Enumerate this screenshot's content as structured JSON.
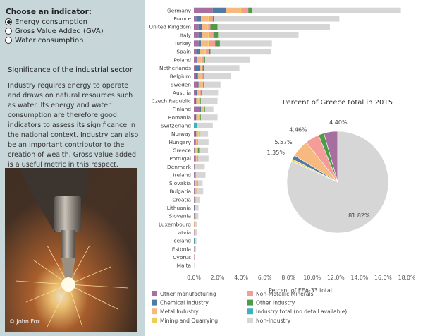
{
  "sidebar": {
    "heading": "Choose an indicator:",
    "options": [
      {
        "label": "Energy consumption",
        "selected": true
      },
      {
        "label": "Gross Value Added (GVA)",
        "selected": false
      },
      {
        "label": "Water consumption",
        "selected": false
      }
    ],
    "significance_title": "Significance of the industrial sector",
    "significance_text": "Industry requires energy to operate and draws on natural resources such as water. Its energy and water consumption are therefore good indicators to assess its significance in the national context. Industry can also be an important contributor to the creation of wealth. Gross value added is a useful metric in this respect.",
    "photo_credit": "© John Fox"
  },
  "colors": {
    "Other manufacturing": "#a76ea0",
    "Chemical Industry": "#4f7aa4",
    "Metal Industry": "#f6b97f",
    "Mining and Quarrying": "#f0cf55",
    "Non-Metallic Minerals": "#f49c98",
    "Other Industry": "#4e9a48",
    "Industry total (no detail available)": "#3bb3be",
    "Non-Industry": "#d6d6d6"
  },
  "chart_data": [
    {
      "type": "bar",
      "orientation": "horizontal",
      "stacked": true,
      "xlabel": "Percent of EEA-33 total",
      "xlim": [
        0,
        18
      ],
      "xticks": [
        "0.0%",
        "2.0%",
        "4.0%",
        "6.0%",
        "8.0%",
        "10.0%",
        "12.0%",
        "14.0%",
        "16.0%",
        "18.0%"
      ],
      "categories": [
        "Germany",
        "France",
        "United Kingdom",
        "Italy",
        "Turkey",
        "Spain",
        "Poland",
        "Netherlands",
        "Belgium",
        "Sweden",
        "Austria",
        "Czech Republic",
        "Finland",
        "Romania",
        "Switzerland",
        "Norway",
        "Hungary",
        "Greece",
        "Portugal",
        "Denmark",
        "Ireland",
        "Slovakia",
        "Bulgaria",
        "Croatia",
        "Lithuania",
        "Slovenia",
        "Luxembourg",
        "Latvia",
        "Iceland",
        "Estonia",
        "Cyprus",
        "Malta"
      ],
      "series": [
        {
          "name": "Other manufacturing",
          "values": [
            1.6,
            0.2,
            0.4,
            0.4,
            0.4,
            0.2,
            0.2,
            0.1,
            0.15,
            0.3,
            0.15,
            0.1,
            0.5,
            0.1,
            0,
            0.1,
            0.1,
            0.05,
            0.1,
            0.02,
            0.05,
            0.05,
            0.05,
            0.02,
            0.02,
            0.02,
            0.01,
            0.02,
            0.02,
            0.01,
            0.01,
            0
          ]
        },
        {
          "name": "Chemical Industry",
          "values": [
            1.1,
            0.4,
            0.3,
            0.3,
            0.2,
            0.3,
            0.1,
            0.4,
            0.2,
            0.1,
            0.1,
            0.1,
            0.1,
            0.1,
            0,
            0.1,
            0.05,
            0.05,
            0.05,
            0.02,
            0.02,
            0.05,
            0.05,
            0.02,
            0.05,
            0.02,
            0,
            0,
            0,
            0.01,
            0,
            0
          ]
        },
        {
          "name": "Metal Industry",
          "values": [
            1.2,
            0.6,
            0.4,
            0.5,
            0.6,
            0.4,
            0.3,
            0.1,
            0.3,
            0.3,
            0.2,
            0.2,
            0.2,
            0.2,
            0,
            0.2,
            0.1,
            0.1,
            0.05,
            0.02,
            0.02,
            0.15,
            0.1,
            0.02,
            0,
            0.05,
            0.05,
            0,
            0,
            0,
            0,
            0
          ]
        },
        {
          "name": "Mining and Quarrying",
          "values": [
            0.1,
            0.1,
            0.1,
            0.05,
            0.1,
            0.1,
            0.05,
            0.05,
            0.02,
            0.05,
            0.05,
            0.05,
            0.05,
            0.05,
            0,
            0.05,
            0.02,
            0.05,
            0.02,
            0.02,
            0.02,
            0.02,
            0.02,
            0.01,
            0,
            0.01,
            0,
            0,
            0,
            0,
            0,
            0
          ]
        },
        {
          "name": "Non-Metallic Minerals",
          "values": [
            0.6,
            0.3,
            0.2,
            0.4,
            0.5,
            0.3,
            0.2,
            0.1,
            0.1,
            0.05,
            0.1,
            0.1,
            0.05,
            0.1,
            0,
            0.05,
            0.05,
            0.1,
            0.1,
            0.02,
            0.05,
            0.05,
            0.05,
            0.05,
            0.02,
            0.02,
            0.02,
            0.02,
            0,
            0.01,
            0.02,
            0
          ]
        },
        {
          "name": "Other Industry",
          "values": [
            0.3,
            0.1,
            0.6,
            0.4,
            0.4,
            0.1,
            0.1,
            0.1,
            0.05,
            0.05,
            0.05,
            0.05,
            0.05,
            0.05,
            0,
            0.05,
            0.02,
            0.1,
            0.02,
            0.02,
            0.02,
            0.02,
            0.02,
            0.01,
            0.01,
            0.01,
            0,
            0,
            0,
            0,
            0,
            0
          ]
        },
        {
          "name": "Industry total (no detail available)",
          "values": [
            0,
            0,
            0,
            0,
            0,
            0,
            0,
            0,
            0,
            0,
            0,
            0,
            0,
            0,
            0.3,
            0,
            0,
            0,
            0,
            0,
            0,
            0,
            0,
            0,
            0,
            0,
            0,
            0,
            0.1,
            0,
            0,
            0
          ]
        },
        {
          "name": "Non-Industry",
          "values": [
            12.6,
            10.6,
            9.5,
            6.8,
            4.4,
            5.1,
            3.8,
            3.0,
            2.3,
            1.4,
            1.4,
            1.4,
            0.7,
            1.4,
            1.3,
            0.65,
            0.9,
            0.75,
            0.9,
            0.8,
            0.8,
            0.4,
            0.5,
            0.4,
            0.3,
            0.25,
            0.2,
            0.2,
            0.1,
            0.15,
            0.05,
            0.03
          ]
        }
      ]
    },
    {
      "type": "pie",
      "title": "Percent of Greece total in 2015",
      "slices": [
        {
          "name": "Other manufacturing",
          "value": 4.4,
          "label": "4.40%"
        },
        {
          "name": "Other Industry",
          "value": 1.78,
          "label": ""
        },
        {
          "name": "Non-Metallic Minerals",
          "value": 4.46,
          "label": "4.46%"
        },
        {
          "name": "Metal Industry",
          "value": 5.57,
          "label": "5.57%"
        },
        {
          "name": "Chemical Industry",
          "value": 1.35,
          "label": "1.35%"
        },
        {
          "name": "Mining and Quarrying",
          "value": 0.62,
          "label": ""
        },
        {
          "name": "Non-Industry",
          "value": 81.82,
          "label": "81.82%"
        }
      ]
    }
  ],
  "legend": [
    "Other manufacturing",
    "Non-Metallic Minerals",
    "Chemical Industry",
    "Other Industry",
    "Metal Industry",
    "Industry total (no detail available)",
    "Mining and Quarrying",
    "Non-Industry"
  ]
}
